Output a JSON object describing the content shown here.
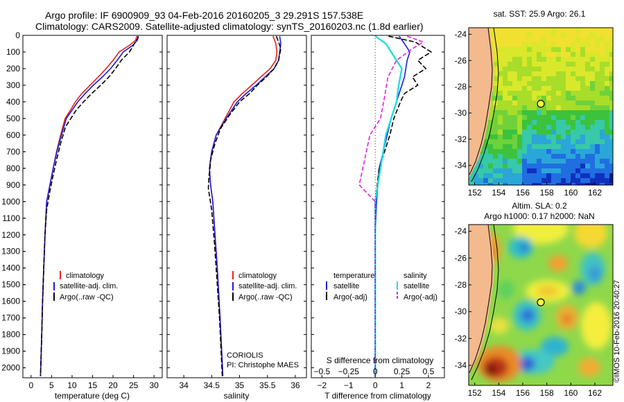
{
  "header": {
    "line1": "Argo profile: IF 6900909_93 04-Feb-2016 20160205_3 29.291S 157.538E",
    "line2": "Climatology: CARS2009. Satellite-adjusted climatology: synTS_20160203.nc (1.8d earlier)"
  },
  "colors": {
    "climatology": "#e8201e",
    "satellite": "#1a1ae0",
    "argo": "#000000",
    "satellite_salinity": "#22dde0",
    "argo_salinity_adj": "#e020e0",
    "land": "#f4b98d"
  },
  "chart_data": [
    {
      "type": "line",
      "name": "temperature-profile",
      "xlabel": "temperature (deg C)",
      "ylabel": "",
      "xlim": [
        -2,
        32
      ],
      "ylim": [
        2060,
        0
      ],
      "xticks": [
        "0",
        "5",
        "10",
        "15",
        "20",
        "25",
        "30"
      ],
      "xtick_values": [
        0,
        5,
        10,
        15,
        20,
        25,
        30
      ],
      "yticks": [
        "0",
        "100",
        "200",
        "300",
        "400",
        "500",
        "600",
        "700",
        "800",
        "900",
        "1000",
        "1100",
        "1200",
        "1300",
        "1400",
        "1500",
        "1600",
        "1700",
        "1800",
        "1900",
        "2000"
      ],
      "ytick_values": [
        0,
        100,
        200,
        300,
        400,
        500,
        600,
        700,
        800,
        900,
        1000,
        1100,
        1200,
        1300,
        1400,
        1500,
        1600,
        1700,
        1800,
        1900,
        2000
      ],
      "legend": [
        "climatology",
        "satellite-adj. clim.",
        "Argo(..raw -QC)"
      ],
      "series": [
        {
          "name": "climatology",
          "x": [
            25.8,
            25.5,
            24.0,
            21.5,
            20.0,
            18.3,
            16.4,
            14.4,
            12.4,
            10.8,
            9.6,
            8.3,
            7.2,
            6.2,
            5.4,
            4.6,
            3.8,
            3.4,
            3.1,
            2.8,
            2.6,
            2.3
          ],
          "y": [
            5,
            30,
            60,
            100,
            150,
            200,
            250,
            300,
            350,
            400,
            450,
            500,
            600,
            700,
            800,
            900,
            1000,
            1200,
            1400,
            1600,
            1800,
            2050
          ]
        },
        {
          "name": "satellite-adj. clim.",
          "x": [
            26.2,
            25.9,
            24.8,
            22.5,
            21.0,
            19.4,
            17.4,
            15.2,
            13.2,
            11.4,
            10.0,
            8.6,
            7.4,
            6.3,
            5.4,
            4.6,
            3.8,
            3.4,
            3.1,
            2.8,
            2.6,
            2.3
          ],
          "y": [
            5,
            30,
            60,
            100,
            150,
            200,
            250,
            300,
            350,
            400,
            450,
            500,
            600,
            700,
            800,
            900,
            1000,
            1200,
            1400,
            1600,
            1800,
            2050
          ]
        },
        {
          "name": "Argo(..raw -QC)",
          "x": [
            26.1,
            26.0,
            25.2,
            24.0,
            22.0,
            20.6,
            19.0,
            17.0,
            14.8,
            12.8,
            11.0,
            9.7,
            8.4,
            7.2,
            6.2,
            5.3,
            4.5,
            3.8,
            3.4,
            3.1,
            2.8,
            2.6,
            2.3
          ],
          "y": [
            5,
            20,
            50,
            100,
            150,
            200,
            250,
            300,
            350,
            400,
            450,
            500,
            550,
            650,
            750,
            850,
            950,
            1050,
            1200,
            1400,
            1600,
            1800,
            2050
          ]
        }
      ]
    },
    {
      "type": "line",
      "name": "salinity-profile",
      "xlabel": "salinity",
      "xlim": [
        33.7,
        36.2
      ],
      "ylim": [
        2060,
        0
      ],
      "xticks": [
        "34",
        "34.5",
        "35",
        "35.5",
        "36"
      ],
      "xtick_values": [
        34,
        34.5,
        35,
        35.5,
        36
      ],
      "legend": [
        "climatology",
        "satellite-adj. clim.",
        "Argo(..raw -QC)"
      ],
      "annotations": [
        "CORIOLIS",
        "PI: Christophe MAES"
      ],
      "series": [
        {
          "name": "climatology",
          "x": [
            35.6,
            35.65,
            35.67,
            35.65,
            35.55,
            35.38,
            35.22,
            35.05,
            34.9,
            34.74,
            34.58,
            34.5,
            34.46,
            34.48,
            34.52,
            34.56,
            34.6,
            34.65,
            34.7
          ],
          "y": [
            5,
            50,
            100,
            150,
            200,
            250,
            300,
            350,
            400,
            500,
            600,
            700,
            800,
            900,
            1000,
            1200,
            1400,
            1700,
            2050
          ]
        },
        {
          "name": "satellite-adj. clim.",
          "x": [
            35.72,
            35.74,
            35.72,
            35.7,
            35.62,
            35.46,
            35.3,
            35.12,
            34.96,
            34.76,
            34.58,
            34.5,
            34.46,
            34.48,
            34.52,
            34.56,
            34.6,
            34.65,
            34.7
          ],
          "y": [
            5,
            50,
            100,
            150,
            200,
            250,
            300,
            350,
            400,
            500,
            600,
            700,
            800,
            900,
            1000,
            1200,
            1400,
            1700,
            2050
          ]
        },
        {
          "name": "Argo(..raw -QC)",
          "x": [
            35.66,
            35.7,
            35.74,
            35.7,
            35.62,
            35.48,
            35.32,
            35.18,
            35.0,
            34.82,
            34.66,
            34.56,
            34.48,
            34.47,
            34.45,
            34.44,
            34.5,
            34.55,
            34.59,
            34.64,
            34.69
          ],
          "y": [
            5,
            40,
            80,
            150,
            200,
            250,
            300,
            350,
            400,
            480,
            560,
            650,
            750,
            800,
            850,
            920,
            1050,
            1250,
            1450,
            1700,
            2050
          ]
        }
      ]
    },
    {
      "type": "line",
      "name": "difference-profile",
      "xlabel": "T difference from climatology",
      "xlabel_top": "S difference from climatology",
      "xlim": [
        -2.4,
        2.6
      ],
      "ylim": [
        2060,
        0
      ],
      "xticks": [
        "−2",
        "−1",
        "0",
        "1",
        "2"
      ],
      "xtick_values": [
        -2,
        -1,
        0,
        1,
        2
      ],
      "xticks_salinity": [
        "−0.5",
        "−0.25",
        "0",
        "0.25",
        "0.5"
      ],
      "xtick_values_salinity": [
        -0.5,
        -0.25,
        0,
        0.25,
        0.5
      ],
      "legend_titles": [
        "temperature",
        "salinity"
      ],
      "legend": [
        "satellite",
        "Argo(-adj)",
        "satellite",
        "Argo(-adj)"
      ],
      "series": [
        {
          "name": "temperature satellite",
          "x": [
            0.9,
            1.1,
            1.3,
            1.2,
            1.15,
            1.1,
            1.0,
            0.9,
            0.8,
            0.6,
            0.45,
            0.3,
            0.15,
            0.05,
            0.0,
            0.0
          ],
          "y": [
            5,
            50,
            100,
            150,
            200,
            250,
            300,
            350,
            400,
            500,
            600,
            700,
            800,
            1000,
            1200,
            2050
          ]
        },
        {
          "name": "temperature Argo(-adj)",
          "x": [
            0.5,
            1.5,
            2.1,
            1.6,
            1.9,
            1.4,
            1.6,
            1.1,
            0.95,
            0.7,
            0.55,
            0.35,
            0.15,
            0.0,
            0.0
          ],
          "y": [
            5,
            40,
            100,
            150,
            200,
            250,
            300,
            350,
            400,
            500,
            600,
            700,
            800,
            1000,
            2050
          ]
        },
        {
          "name": "salinity satellite",
          "x": [
            0.0,
            0.1,
            0.15,
            0.25,
            0.22,
            0.2,
            0.15,
            0.1,
            0.05,
            0.0,
            0.0
          ],
          "y": [
            5,
            50,
            100,
            200,
            300,
            400,
            500,
            600,
            800,
            1000,
            2050
          ]
        },
        {
          "name": "salinity Argo(-adj)",
          "x": [
            0.3,
            0.45,
            0.35,
            0.2,
            0.12,
            0.08,
            0.05,
            -0.05,
            -0.1,
            -0.15,
            0.0,
            0.0
          ],
          "y": [
            5,
            40,
            80,
            150,
            250,
            400,
            500,
            600,
            750,
            900,
            1000,
            2050
          ]
        }
      ]
    }
  ],
  "maps": {
    "sst": {
      "title": "sat. SST: 25.9 Argo: 26.1",
      "xticks": [
        "152",
        "154",
        "156",
        "158",
        "160",
        "162"
      ],
      "xtick_values": [
        152,
        154,
        156,
        158,
        160,
        162
      ],
      "yticks": [
        "-24",
        "-26",
        "-28",
        "-30",
        "-32",
        "-34"
      ],
      "ytick_values": [
        -24,
        -26,
        -28,
        -30,
        -32,
        -34
      ],
      "lon_range": [
        151.5,
        163.5
      ],
      "lat_range": [
        -35.5,
        -23.5
      ],
      "argo_lon": 157.5,
      "argo_lat": -29.3
    },
    "sla": {
      "title_line1": "Altim. SLA: 0.2",
      "title_line2": "Argo h1000: 0.17 h2000: NaN",
      "xticks": [
        "152",
        "154",
        "156",
        "158",
        "160",
        "162"
      ],
      "xtick_values": [
        152,
        154,
        156,
        158,
        160,
        162
      ],
      "yticks": [
        "-24",
        "-26",
        "-28",
        "-30",
        "-32",
        "-34"
      ],
      "ytick_values": [
        -24,
        -26,
        -28,
        -30,
        -32,
        -34
      ],
      "lon_range": [
        151.5,
        163.5
      ],
      "lat_range": [
        -35.5,
        -23.5
      ],
      "argo_lon": 157.5,
      "argo_lat": -29.3
    }
  },
  "footer": {
    "stamp": "©IMOS 10-Feb-2016 20:40:27"
  }
}
